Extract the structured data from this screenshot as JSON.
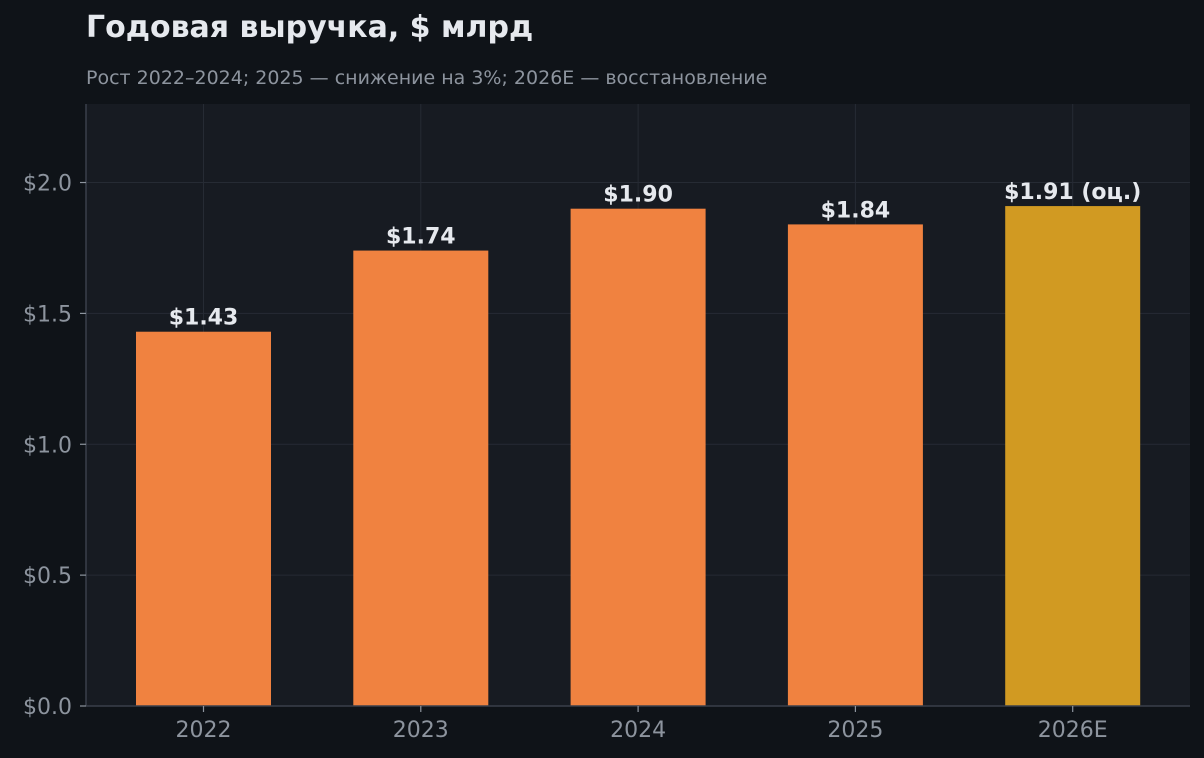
{
  "header": {
    "title": "Годовая выручка, $ млрд",
    "subtitle": "Рост 2022–2024; 2025 — снижение на 3%; 2026E — восстановление"
  },
  "colors": {
    "page_background": "#0f1318",
    "plot_background": "#171b22",
    "grid": "#262b34",
    "axis": "#3a404b",
    "tick_label": "#8d949e",
    "bar_actual": "#f08240",
    "bar_estimate": "#d19a22",
    "data_label": "#e6e9ee",
    "title": "#e6e9ee",
    "subtitle": "#8d949e"
  },
  "chart_data": {
    "type": "bar",
    "title": "Годовая выручка, $ млрд",
    "subtitle": "Рост 2022–2024; 2025 — снижение на 3%; 2026E — восстановление",
    "xlabel": "",
    "ylabel": "",
    "categories": [
      "2022",
      "2023",
      "2024",
      "2025",
      "2026E"
    ],
    "values": [
      1.43,
      1.74,
      1.9,
      1.84,
      1.91
    ],
    "data_labels": [
      "$1.43",
      "$1.74",
      "$1.90",
      "$1.84",
      "$1.91 (оц.)"
    ],
    "estimate": [
      false,
      false,
      false,
      false,
      true
    ],
    "ylim": [
      0,
      2.3
    ],
    "yticks": [
      0,
      0.5,
      1.0,
      1.5,
      2.0
    ],
    "ytick_labels": [
      "$0.0",
      "$0.5",
      "$1.0",
      "$1.5",
      "$2.0"
    ],
    "grid": true,
    "legend": "none"
  }
}
